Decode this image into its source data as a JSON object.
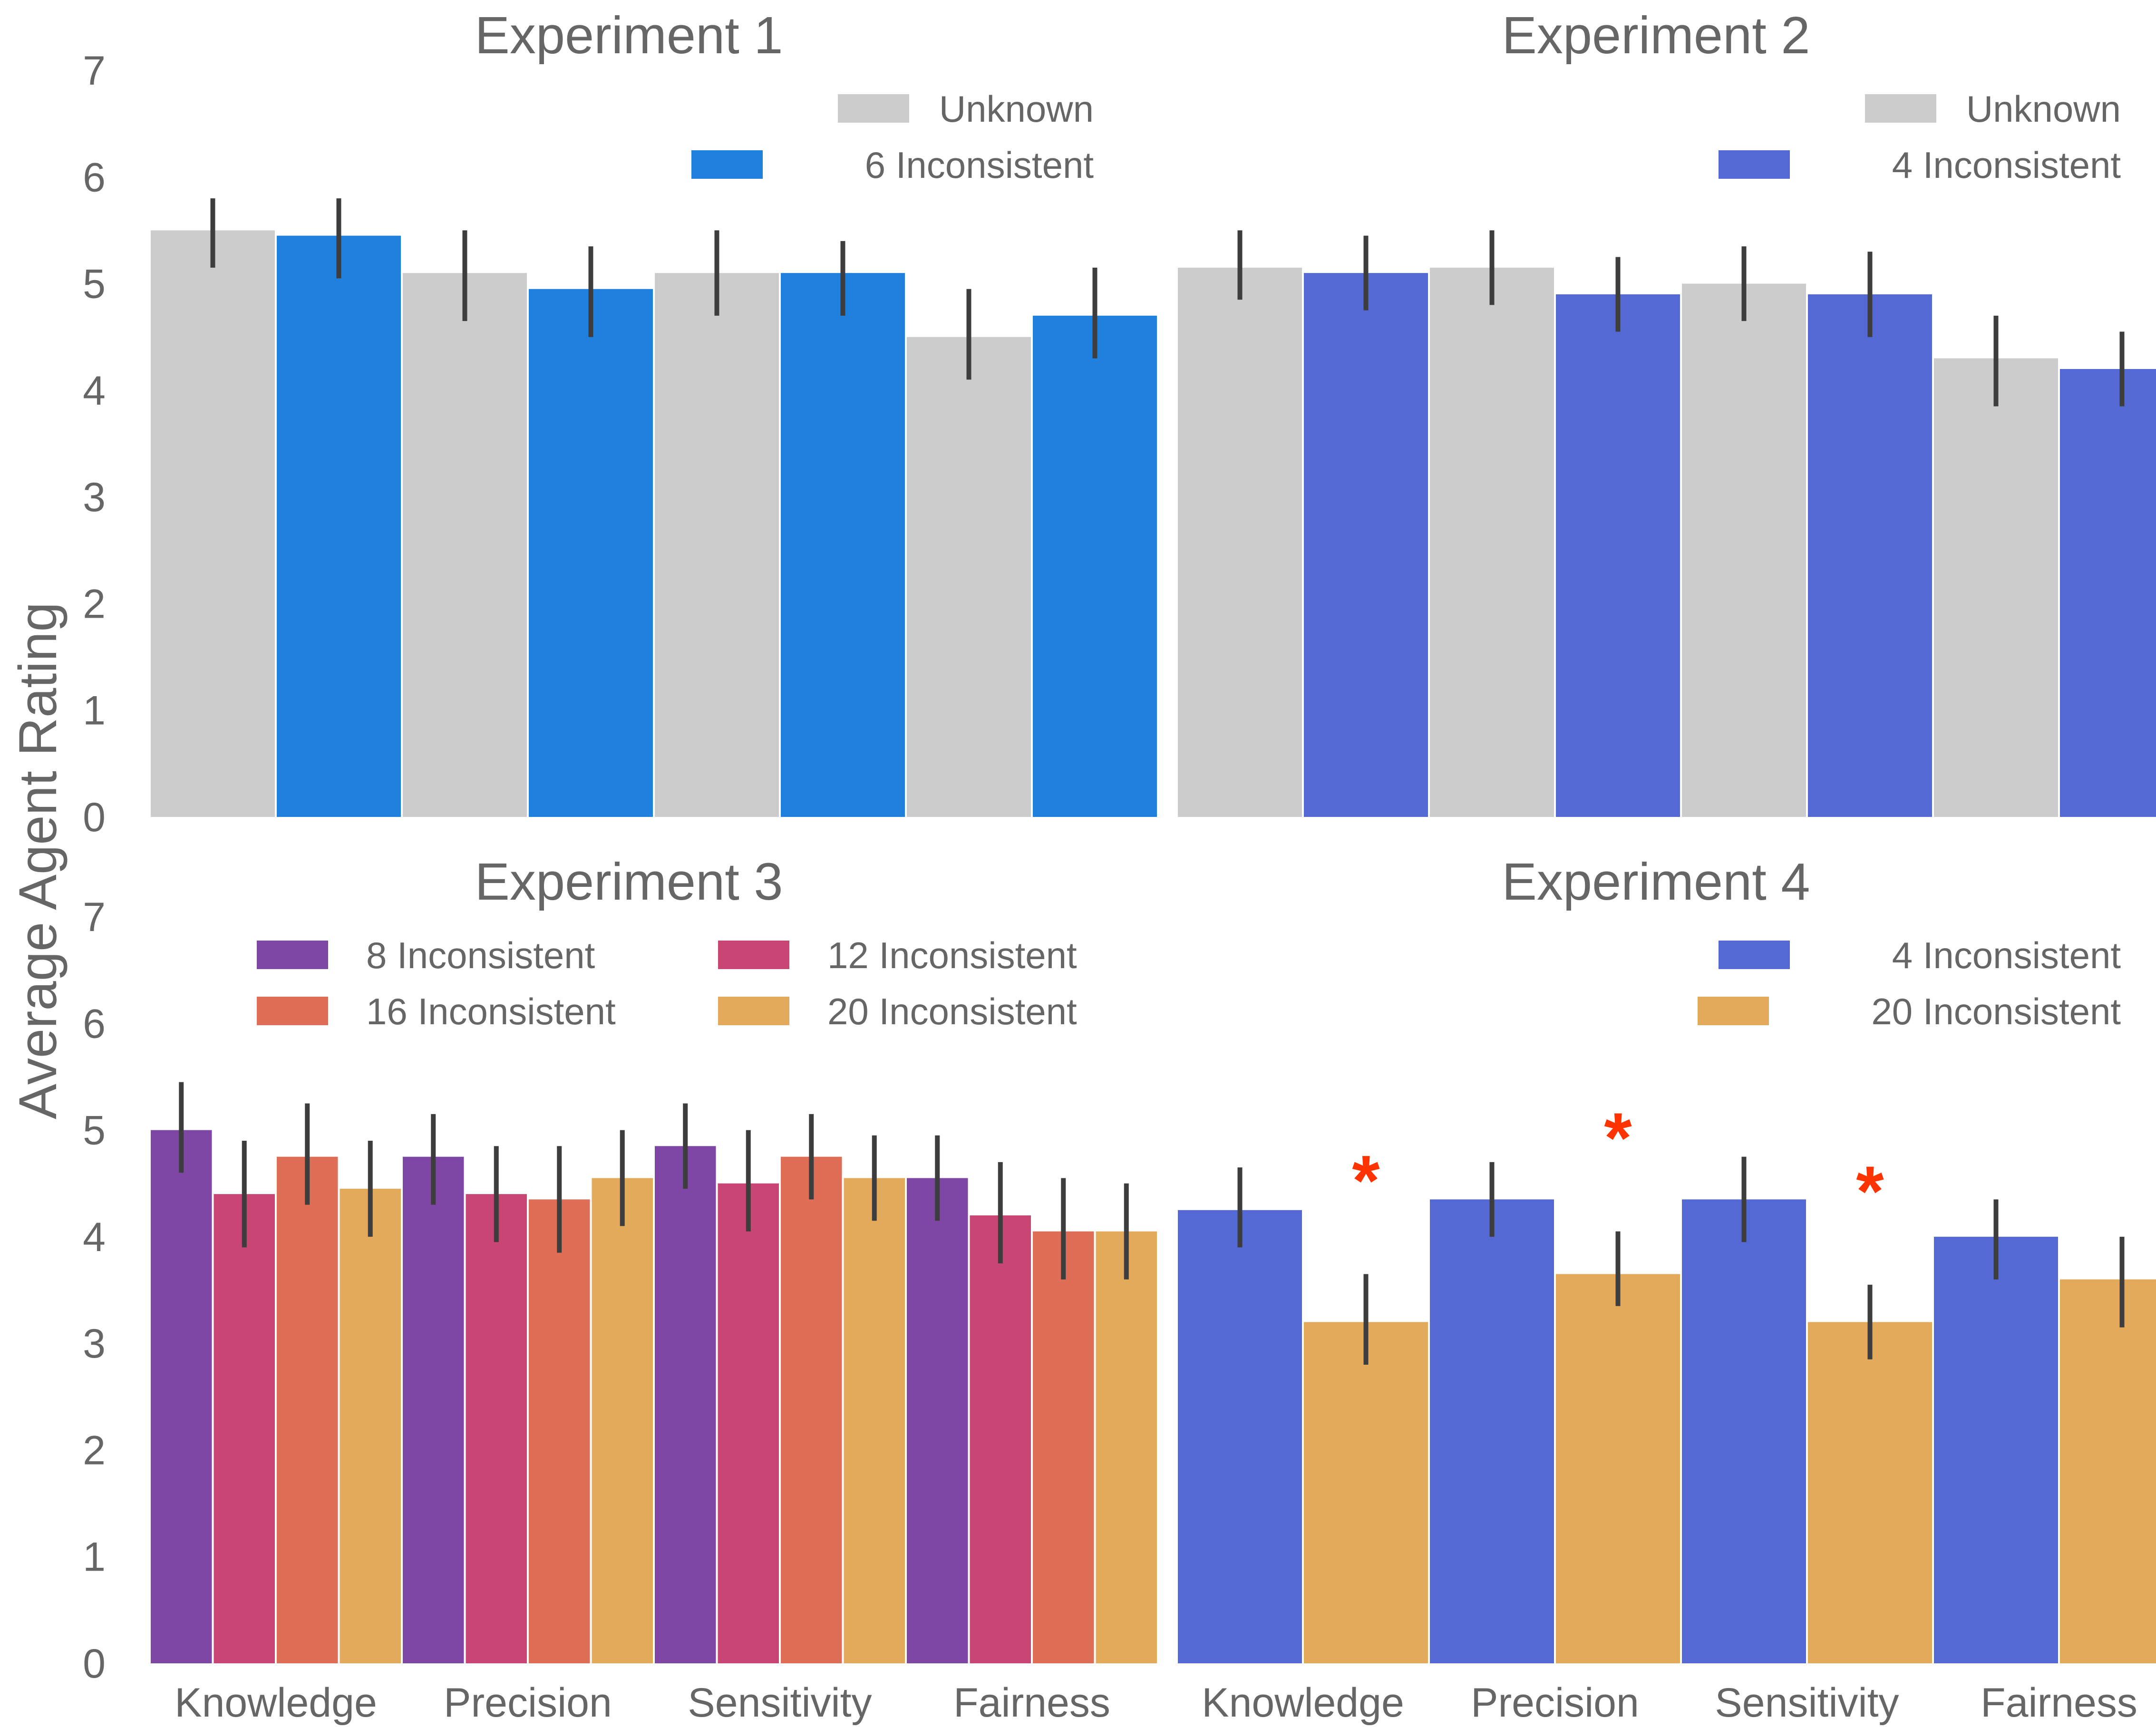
{
  "ylabel": "Average Agent Rating",
  "categories": [
    "Knowledge",
    "Precision",
    "Sensitivity",
    "Fairness"
  ],
  "yticks": [
    "0",
    "1",
    "2",
    "3",
    "4",
    "5",
    "6",
    "7"
  ],
  "chart_data": [
    {
      "type": "bar",
      "title": "Experiment 1",
      "categories": [
        "Knowledge",
        "Precision",
        "Sensitivity",
        "Fairness"
      ],
      "ylim": [
        0,
        7
      ],
      "legend": "top-right",
      "series": [
        {
          "name": "Unknown",
          "color": "#cccccc",
          "values": [
            5.5,
            5.1,
            5.1,
            4.5
          ],
          "err_low": [
            5.15,
            4.65,
            4.7,
            4.1
          ],
          "err_high": [
            5.8,
            5.5,
            5.5,
            4.95
          ]
        },
        {
          "name": "6 Inconsistent",
          "color": "#1f80de",
          "values": [
            5.45,
            4.95,
            5.1,
            4.7
          ],
          "err_low": [
            5.05,
            4.5,
            4.7,
            4.3
          ],
          "err_high": [
            5.8,
            5.35,
            5.4,
            5.15
          ]
        }
      ],
      "annotations": []
    },
    {
      "type": "bar",
      "title": "Experiment 2",
      "categories": [
        "Knowledge",
        "Precision",
        "Sensitivity",
        "Fairness"
      ],
      "ylim": [
        0,
        7
      ],
      "legend": "top-right",
      "series": [
        {
          "name": "Unknown",
          "color": "#cccccc",
          "values": [
            5.15,
            5.15,
            5.0,
            4.3
          ],
          "err_low": [
            4.85,
            4.8,
            4.65,
            3.85
          ],
          "err_high": [
            5.5,
            5.5,
            5.35,
            4.7
          ]
        },
        {
          "name": "4 Inconsistent",
          "color": "#5469d3",
          "values": [
            5.1,
            4.9,
            4.9,
            4.2
          ],
          "err_low": [
            4.75,
            4.55,
            4.5,
            3.85
          ],
          "err_high": [
            5.45,
            5.25,
            5.3,
            4.55
          ]
        }
      ],
      "annotations": []
    },
    {
      "type": "bar",
      "title": "Experiment 3",
      "categories": [
        "Knowledge",
        "Precision",
        "Sensitivity",
        "Fairness"
      ],
      "ylim": [
        0,
        7
      ],
      "legend": "top",
      "series": [
        {
          "name": "8 Inconsistent",
          "color": "#7f47a5",
          "values": [
            5.0,
            4.75,
            4.85,
            4.55
          ],
          "err_low": [
            4.6,
            4.3,
            4.45,
            4.15
          ],
          "err_high": [
            5.45,
            5.15,
            5.25,
            4.95
          ]
        },
        {
          "name": "12 Inconsistent",
          "color": "#c94674",
          "values": [
            4.4,
            4.4,
            4.5,
            4.2
          ],
          "err_low": [
            3.9,
            3.95,
            4.05,
            3.75
          ],
          "err_high": [
            4.9,
            4.85,
            5.0,
            4.7
          ]
        },
        {
          "name": "16 Inconsistent",
          "color": "#df6e57",
          "values": [
            4.75,
            4.35,
            4.75,
            4.05
          ],
          "err_low": [
            4.3,
            3.85,
            4.35,
            3.6
          ],
          "err_high": [
            5.25,
            4.85,
            5.15,
            4.55
          ]
        },
        {
          "name": "20 Inconsistent",
          "color": "#e3aa5c",
          "values": [
            4.45,
            4.55,
            4.55,
            4.05
          ],
          "err_low": [
            4.0,
            4.1,
            4.15,
            3.6
          ],
          "err_high": [
            4.9,
            5.0,
            4.95,
            4.5
          ]
        }
      ],
      "annotations": []
    },
    {
      "type": "bar",
      "title": "Experiment 4",
      "categories": [
        "Knowledge",
        "Precision",
        "Sensitivity",
        "Fairness"
      ],
      "ylim": [
        0,
        7
      ],
      "legend": "top-right",
      "series": [
        {
          "name": "4 Inconsistent",
          "color": "#5469d3",
          "values": [
            4.25,
            4.35,
            4.35,
            4.0
          ],
          "err_low": [
            3.9,
            4.0,
            3.95,
            3.6
          ],
          "err_high": [
            4.65,
            4.7,
            4.75,
            4.35
          ]
        },
        {
          "name": "20 Inconsistent",
          "color": "#e3aa5c",
          "values": [
            3.2,
            3.65,
            3.2,
            3.6
          ],
          "err_low": [
            2.8,
            3.35,
            2.85,
            3.15
          ],
          "err_high": [
            3.65,
            4.05,
            3.55,
            4.0
          ]
        }
      ],
      "annotations": [
        {
          "category": "Knowledge",
          "text": "*",
          "color": "#ff3300"
        },
        {
          "category": "Precision",
          "text": "*",
          "color": "#ff3300"
        },
        {
          "category": "Sensitivity",
          "text": "*",
          "color": "#ff3300"
        }
      ]
    }
  ]
}
